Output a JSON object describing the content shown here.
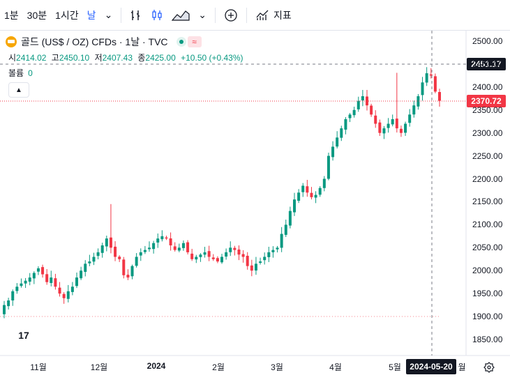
{
  "toolbar": {
    "intervals": [
      "1분",
      "30분",
      "1시간",
      "날"
    ],
    "indicators_label": "지표"
  },
  "legend": {
    "symbol_title": "골드 (US$ / OZ) CFDs · 1날 · TVC",
    "open_label": "시",
    "open": "2414.02",
    "high_label": "고",
    "high": "2450.10",
    "low_label": "저",
    "low": "2407.43",
    "close_label": "종",
    "close": "2425.00",
    "change": "+10.50 (+0.43%)",
    "volume_label": "볼륨",
    "volume": "0"
  },
  "price_axis": {
    "ticks": [
      "2500.00",
      "2450.00",
      "2400.00",
      "2350.00",
      "2300.00",
      "2250.00",
      "2200.00",
      "2150.00",
      "2100.00",
      "2050.00",
      "2000.00",
      "1950.00",
      "1900.00",
      "1850.00"
    ],
    "crosshair_price": "2451.17",
    "last_price": "2370.72"
  },
  "time_axis": {
    "ticks": [
      "11월",
      "12월",
      "2024",
      "2월",
      "3월",
      "4월",
      "5월"
    ],
    "tail_label": "월",
    "crosshair_date": "2024-05-20"
  },
  "colors": {
    "up": "#089981",
    "down": "#f23645",
    "accent": "#2962ff"
  },
  "chart_data": {
    "type": "candlestick",
    "series_name": "골드 (US$ / OZ) CFDs",
    "ylim": [
      1820,
      2520
    ],
    "x_range": [
      "2023-10-15",
      "2024-06-01"
    ],
    "candles_note_first": "2023-10-16",
    "close_path": [
      1925,
      1935,
      1955,
      1965,
      1972,
      1978,
      1985,
      1995,
      2005,
      1992,
      1975,
      1985,
      1965,
      1950,
      1940,
      1955,
      1965,
      1985,
      2000,
      2015,
      2020,
      2030,
      2040,
      2055,
      2070,
      2050,
      2030,
      2025,
      1990,
      1985,
      2010,
      2030,
      2040,
      2045,
      2050,
      2060,
      2070,
      2075,
      2070,
      2055,
      2045,
      2050,
      2060,
      2040,
      2025,
      2030,
      2035,
      2040,
      2030,
      2025,
      2020,
      2030,
      2040,
      2050,
      2045,
      2035,
      2030,
      2010,
      2000,
      2015,
      2020,
      2030,
      2040,
      2045,
      2050,
      2080,
      2100,
      2130,
      2155,
      2170,
      2185,
      2170,
      2160,
      2165,
      2180,
      2200,
      2250,
      2270,
      2290,
      2310,
      2330,
      2340,
      2350,
      2370,
      2380,
      2360,
      2340,
      2320,
      2300,
      2310,
      2320,
      2330,
      2310,
      2300,
      2320,
      2340,
      2360,
      2380,
      2410,
      2430,
      2425,
      2390,
      2370
    ]
  }
}
